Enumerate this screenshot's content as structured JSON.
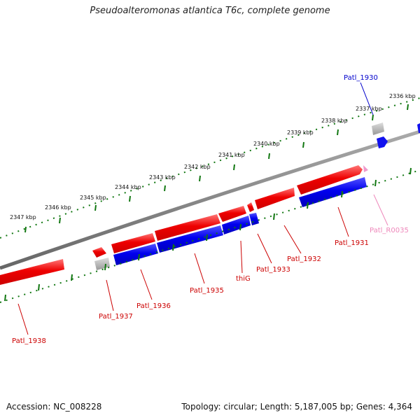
{
  "title": "Pseudoalteromonas atlantica T6c, complete genome",
  "footer": {
    "accession": "Accession: NC_008228",
    "summary": "Topology: circular; Length: 5,187,005 bp; Genes: 4,364"
  },
  "colors": {
    "forward": "#ee1111",
    "reverse": "#1111dd",
    "pseudo": "#aaaaaa",
    "rna": "#ee99cc",
    "backbone": "#888888",
    "ticks": "#117711",
    "label_red": "#cc0000",
    "label_blue": "#0000cc",
    "label_pink": "#ee88bb"
  },
  "kbp_ticks": [
    "2336 kbp",
    "2337 kbp",
    "2338 kbp",
    "2339 kbp",
    "2340 kbp",
    "2341 kbp",
    "2342 kbp",
    "2343 kbp",
    "2344 kbp",
    "2345 kbp",
    "2346 kbp",
    "2347 kbp"
  ],
  "gene_labels": {
    "patl_1930": "Patl_1930",
    "patl_r0035": "Patl_R0035",
    "patl_1931": "Patl_1931",
    "patl_1932": "Patl_1932",
    "patl_1933": "Patl_1933",
    "thig": "thiG",
    "patl_1935": "Patl_1935",
    "patl_1936": "Patl_1936",
    "patl_1937": "Patl_1937",
    "patl_1938": "Patl_1938"
  }
}
